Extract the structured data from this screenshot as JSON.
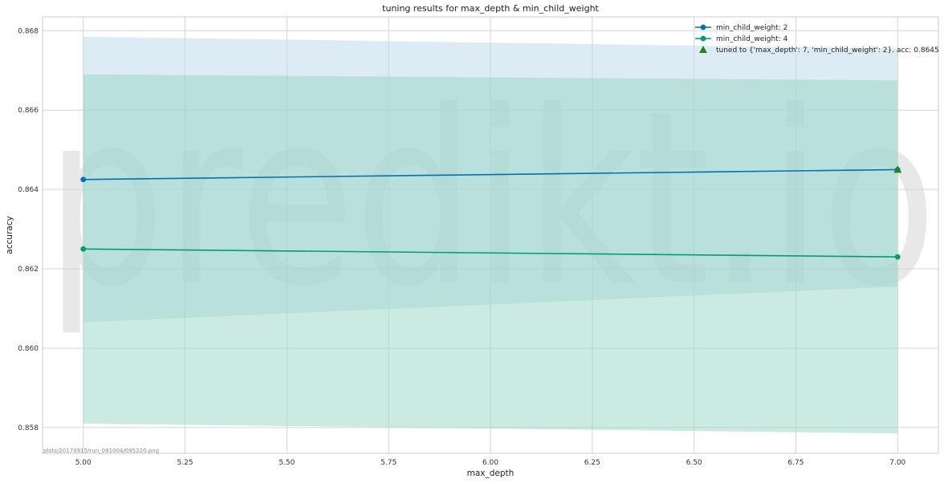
{
  "chart_data": {
    "type": "line",
    "title": "tuning results for max_depth & min_child_weight",
    "xlabel": "max_depth",
    "ylabel": "accuracy",
    "xlim": [
      4.9,
      7.1
    ],
    "ylim": [
      0.85735,
      0.86835
    ],
    "x_ticks": [
      5.0,
      5.25,
      5.5,
      5.75,
      6.0,
      6.25,
      6.5,
      6.75,
      7.0
    ],
    "x_tick_labels": [
      "5.00",
      "5.25",
      "5.50",
      "5.75",
      "6.00",
      "6.25",
      "6.50",
      "6.75",
      "7.00"
    ],
    "y_ticks": [
      0.858,
      0.86,
      0.862,
      0.864,
      0.866,
      0.868
    ],
    "y_tick_labels": [
      "0.858",
      "0.860",
      "0.862",
      "0.864",
      "0.866",
      "0.868"
    ],
    "grid": true,
    "legend_position": "top-right",
    "series": [
      {
        "name": "min_child_weight: 2",
        "color": "#0072b2",
        "band_color": "#bcd8ea",
        "x": [
          5,
          7
        ],
        "y": [
          0.86425,
          0.8645
        ],
        "upper": [
          0.86785,
          0.86755
        ],
        "lower": [
          0.86065,
          0.86155
        ]
      },
      {
        "name": "min_child_weight: 4",
        "color": "#009e73",
        "band_color": "#97d6c4",
        "x": [
          5,
          7
        ],
        "y": [
          0.8625,
          0.8623
        ],
        "upper": [
          0.8669,
          0.86675
        ],
        "lower": [
          0.8581,
          0.85785
        ]
      }
    ],
    "best_marker": {
      "label": "tuned to {'max_depth': 7, 'min_child_weight': 2}.  acc: 0.8645",
      "x": 7,
      "y": 0.8645,
      "color": "#1a8a1a"
    }
  },
  "watermark": "predikt.io",
  "footnote": "plots/20170915/run_091004/095220.png"
}
